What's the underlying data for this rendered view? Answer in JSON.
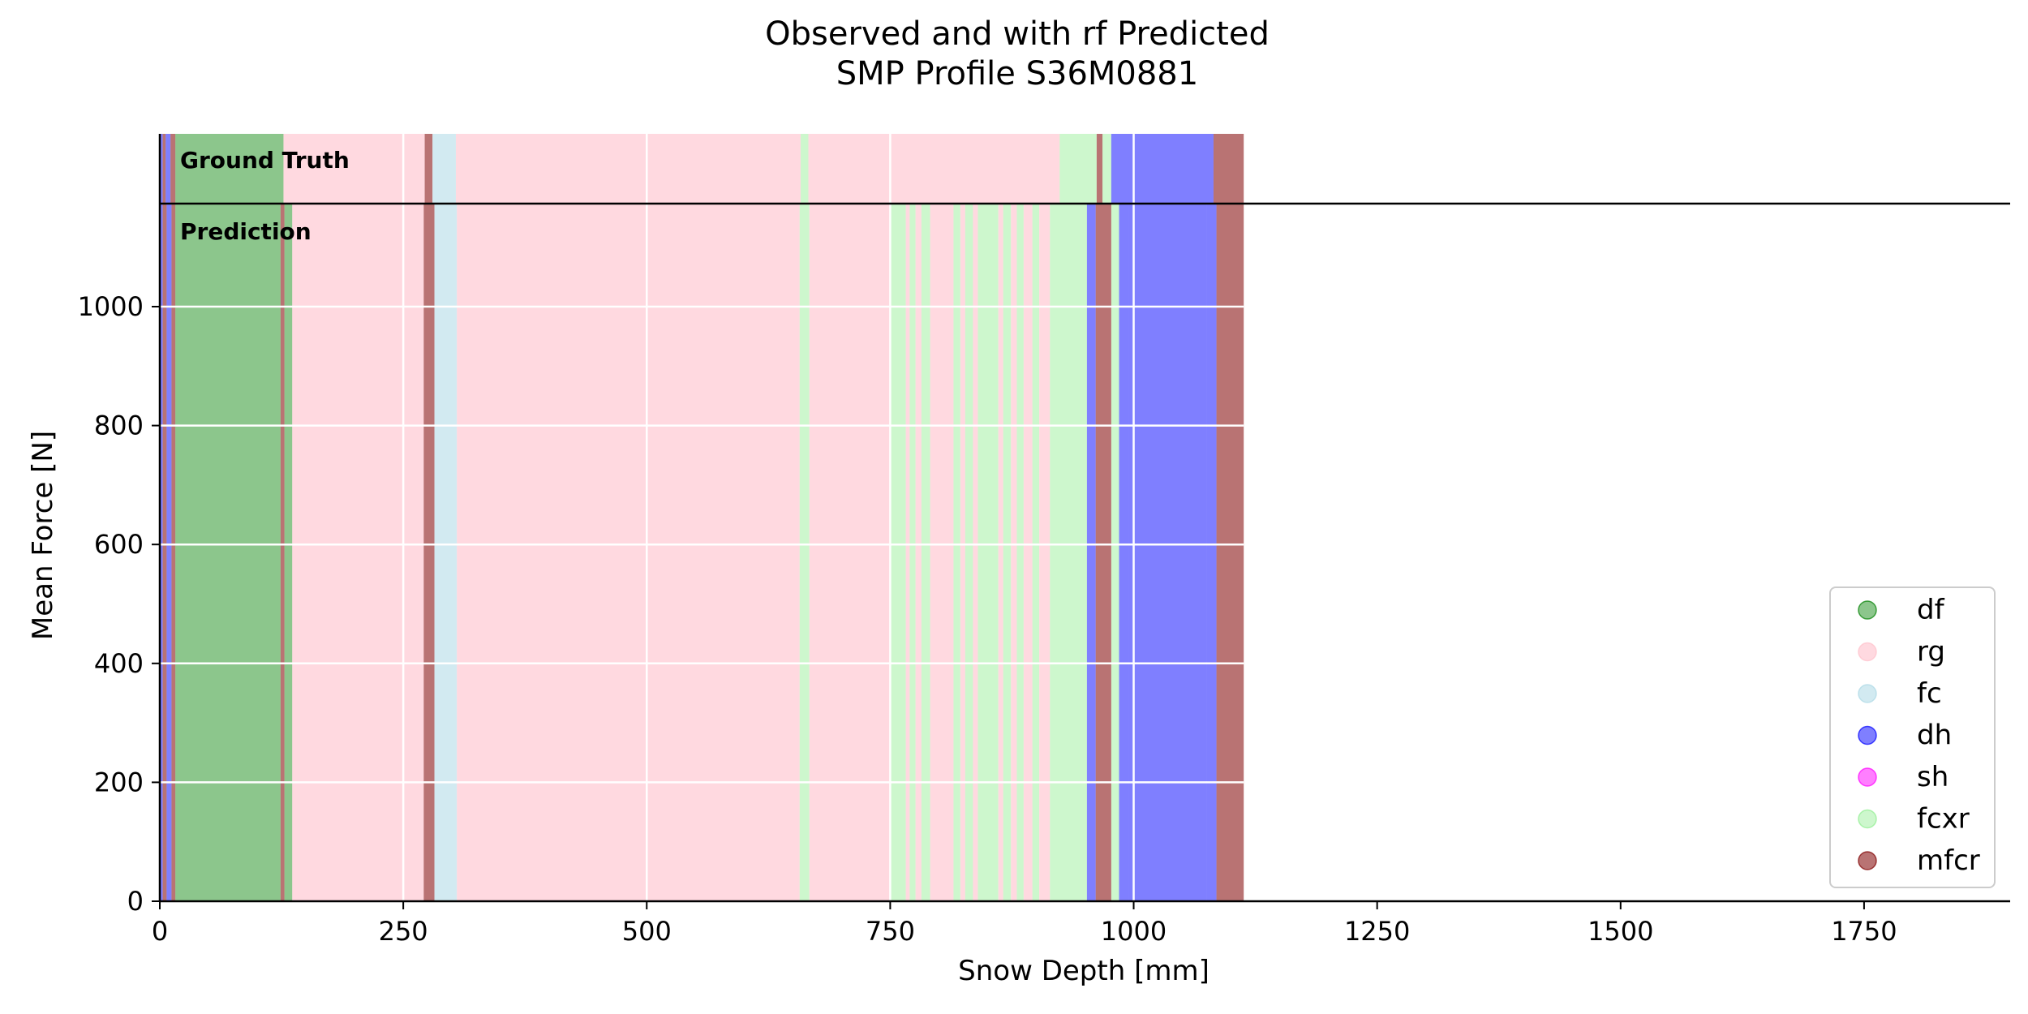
{
  "chart_data": {
    "type": "area",
    "title": "Observed and with rf Predicted",
    "subtitle": "SMP Profile S36M0881",
    "xlabel": "Snow Depth [mm]",
    "ylabel": "Mean Force [N]",
    "xlim": [
      0,
      1900
    ],
    "ylim": [
      0,
      1000
    ],
    "x_ticks": [
      0,
      250,
      500,
      750,
      1000,
      1250,
      1500,
      1750
    ],
    "y_ticks": [
      0,
      200,
      400,
      600,
      800,
      1000
    ],
    "grid": true,
    "legend_position": "lower-right",
    "band_labels": {
      "truth": "Ground Truth",
      "prediction": "Prediction"
    },
    "legend": [
      {
        "name": "df",
        "color": "#008000"
      },
      {
        "name": "rg",
        "color": "#ffc0cb"
      },
      {
        "name": "fc",
        "color": "#add8e6"
      },
      {
        "name": "dh",
        "color": "#0000ff"
      },
      {
        "name": "sh",
        "color": "#ff00ff"
      },
      {
        "name": "fcxr",
        "color": "#90ee90"
      },
      {
        "name": "mfcr",
        "color": "#800000"
      }
    ],
    "ground_truth": [
      {
        "from": 0,
        "to": 3,
        "label": "dh"
      },
      {
        "from": 3,
        "to": 6,
        "label": "mfcr"
      },
      {
        "from": 6,
        "to": 11,
        "label": "dh"
      },
      {
        "from": 11,
        "to": 16,
        "label": "mfcr"
      },
      {
        "from": 16,
        "to": 127,
        "label": "df"
      },
      {
        "from": 127,
        "to": 272,
        "label": "rg"
      },
      {
        "from": 272,
        "to": 280,
        "label": "mfcr"
      },
      {
        "from": 280,
        "to": 304,
        "label": "fc"
      },
      {
        "from": 304,
        "to": 658,
        "label": "rg"
      },
      {
        "from": 658,
        "to": 666,
        "label": "fcxr"
      },
      {
        "from": 666,
        "to": 924,
        "label": "rg"
      },
      {
        "from": 924,
        "to": 962,
        "label": "fcxr"
      },
      {
        "from": 962,
        "to": 968,
        "label": "mfcr"
      },
      {
        "from": 968,
        "to": 977,
        "label": "fcxr"
      },
      {
        "from": 977,
        "to": 1082,
        "label": "dh"
      },
      {
        "from": 1082,
        "to": 1113,
        "label": "mfcr"
      }
    ],
    "prediction": [
      {
        "from": 0,
        "to": 3,
        "label": "dh"
      },
      {
        "from": 3,
        "to": 7,
        "label": "mfcr"
      },
      {
        "from": 7,
        "to": 12,
        "label": "dh"
      },
      {
        "from": 12,
        "to": 16,
        "label": "mfcr"
      },
      {
        "from": 16,
        "to": 124,
        "label": "df"
      },
      {
        "from": 124,
        "to": 128,
        "label": "mfcr"
      },
      {
        "from": 128,
        "to": 136,
        "label": "df"
      },
      {
        "from": 136,
        "to": 271,
        "label": "rg"
      },
      {
        "from": 271,
        "to": 282,
        "label": "mfcr"
      },
      {
        "from": 282,
        "to": 305,
        "label": "fc"
      },
      {
        "from": 305,
        "to": 657,
        "label": "rg"
      },
      {
        "from": 657,
        "to": 667,
        "label": "fcxr"
      },
      {
        "from": 667,
        "to": 750,
        "label": "rg"
      },
      {
        "from": 750,
        "to": 766,
        "label": "fcxr"
      },
      {
        "from": 766,
        "to": 770,
        "label": "rg"
      },
      {
        "from": 770,
        "to": 776,
        "label": "fcxr"
      },
      {
        "from": 776,
        "to": 782,
        "label": "rg"
      },
      {
        "from": 782,
        "to": 791,
        "label": "fcxr"
      },
      {
        "from": 791,
        "to": 815,
        "label": "rg"
      },
      {
        "from": 815,
        "to": 822,
        "label": "fcxr"
      },
      {
        "from": 822,
        "to": 827,
        "label": "rg"
      },
      {
        "from": 827,
        "to": 835,
        "label": "fcxr"
      },
      {
        "from": 835,
        "to": 840,
        "label": "rg"
      },
      {
        "from": 840,
        "to": 861,
        "label": "fcxr"
      },
      {
        "from": 861,
        "to": 866,
        "label": "rg"
      },
      {
        "from": 866,
        "to": 874,
        "label": "fcxr"
      },
      {
        "from": 874,
        "to": 880,
        "label": "rg"
      },
      {
        "from": 880,
        "to": 887,
        "label": "fcxr"
      },
      {
        "from": 887,
        "to": 896,
        "label": "rg"
      },
      {
        "from": 896,
        "to": 903,
        "label": "fcxr"
      },
      {
        "from": 903,
        "to": 914,
        "label": "rg"
      },
      {
        "from": 914,
        "to": 952,
        "label": "fcxr"
      },
      {
        "from": 952,
        "to": 961,
        "label": "dh"
      },
      {
        "from": 961,
        "to": 977,
        "label": "mfcr"
      },
      {
        "from": 977,
        "to": 985,
        "label": "fcxr"
      },
      {
        "from": 985,
        "to": 995,
        "label": "dh"
      },
      {
        "from": 995,
        "to": 1075,
        "label": "dh"
      },
      {
        "from": 1075,
        "to": 1085,
        "label": "dh"
      },
      {
        "from": 1085,
        "to": 1113,
        "label": "mfcr"
      }
    ]
  }
}
